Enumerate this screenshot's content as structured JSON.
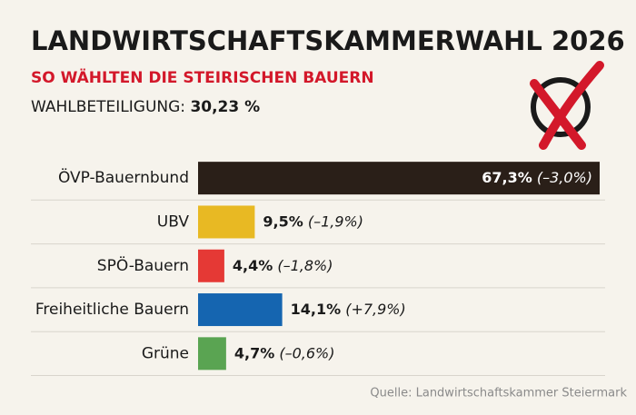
{
  "chart_data": {
    "type": "bar",
    "orientation": "horizontal",
    "title": "LANDWIRTSCHAFTSKAMMERWAHL 2026",
    "subtitle": "SO WÄHLTEN DIE STEIRISCHEN BAUERN",
    "turnout": {
      "label": "WAHLBETEILIGUNG:",
      "value": 30.23,
      "value_label": "30,23 %"
    },
    "categories": [
      "ÖVP-Bauernbund",
      "UBV",
      "SPÖ-Bauern",
      "Freiheitliche Bauern",
      "Grüne"
    ],
    "values": [
      67.3,
      9.5,
      4.4,
      14.1,
      4.7
    ],
    "value_labels": [
      "67,3%",
      "9,5%",
      "4,4%",
      "14,1%",
      "4,7%"
    ],
    "changes": [
      -3.0,
      -1.9,
      -1.8,
      7.9,
      -0.6
    ],
    "change_labels": [
      "(–3,0%)",
      "(–1,9%)",
      "(–1,8%)",
      "(+7,9%)",
      "(–0,6%)"
    ],
    "colors": [
      "#2a1f18",
      "#e8b923",
      "#e53935",
      "#1565b0",
      "#5aa452"
    ],
    "source": "Quelle: Landwirtschaftskammer Steiermark"
  }
}
